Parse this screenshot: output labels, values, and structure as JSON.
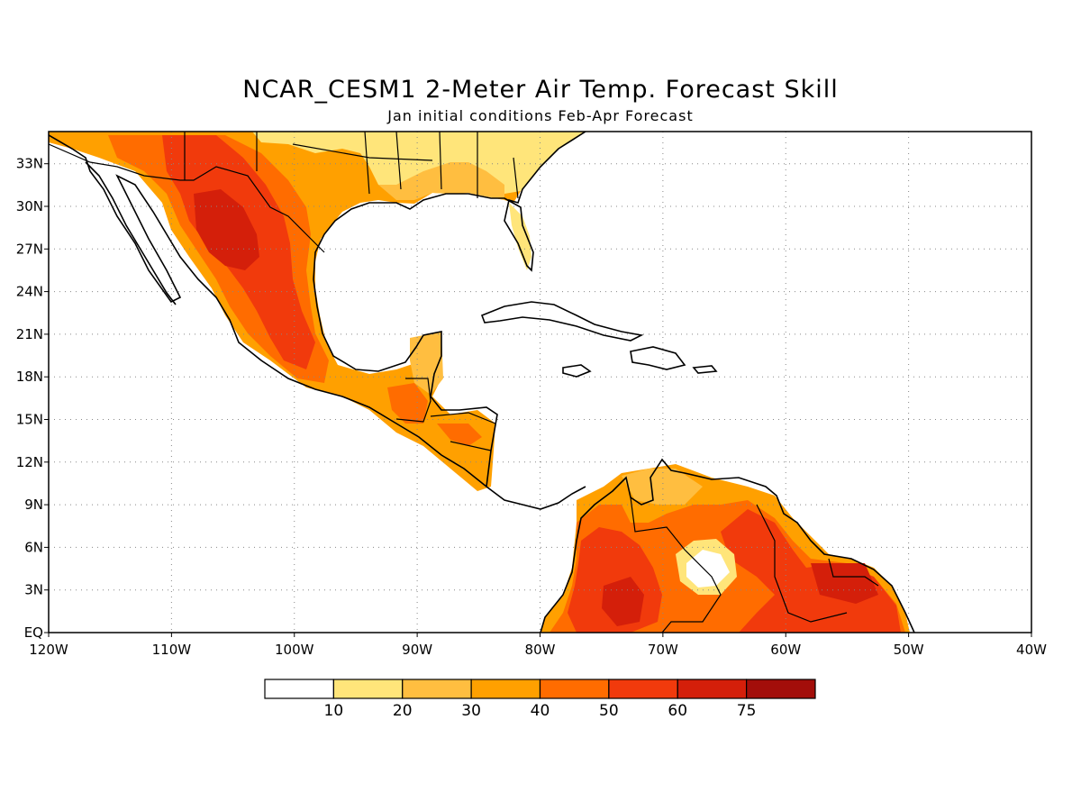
{
  "title": "NCAR_CESM1 2-Meter Air Temp. Forecast Skill",
  "subtitle": "Jan initial conditions  Feb-Apr Forecast",
  "map": {
    "lon_labels": [
      "120W",
      "110W",
      "100W",
      "90W",
      "80W",
      "70W",
      "60W",
      "50W",
      "40W"
    ],
    "lat_labels": [
      "33N",
      "30N",
      "27N",
      "24N",
      "21N",
      "18N",
      "15N",
      "12N",
      "9N",
      "6N",
      "3N",
      "EQ"
    ],
    "grid": "dotted",
    "coastline_color": "#000000"
  },
  "colorbar": {
    "bins": [
      {
        "color": "#ffffff",
        "label": "10"
      },
      {
        "color": "#ffe57a",
        "label": "20"
      },
      {
        "color": "#ffbe40",
        "label": "30"
      },
      {
        "color": "#ffa000",
        "label": "40"
      },
      {
        "color": "#ff6c00",
        "label": "50"
      },
      {
        "color": "#f13a0c",
        "label": "60"
      },
      {
        "color": "#d41f0a",
        "label": "75"
      },
      {
        "color": "#a30e0a",
        "label": ""
      }
    ]
  }
}
